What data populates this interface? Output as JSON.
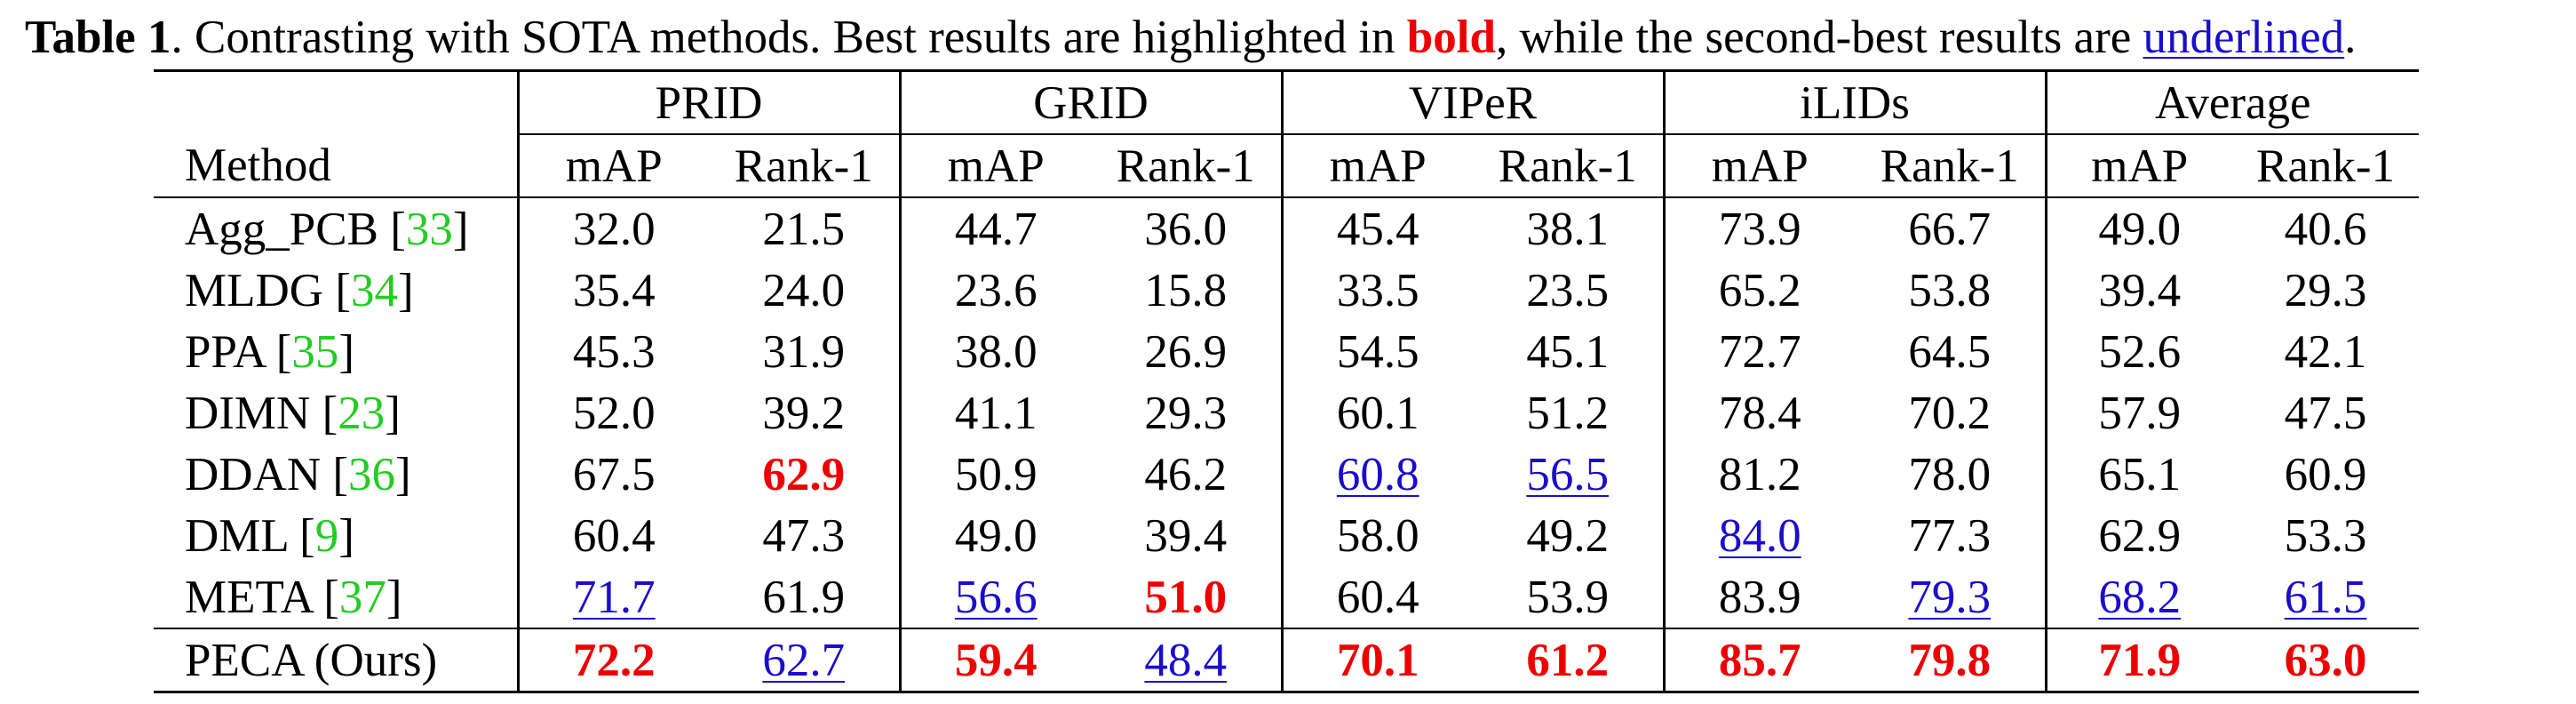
{
  "caption": {
    "label": "Table 1",
    "text_before_bold": ". Contrasting with SOTA methods. Best results are highlighted in ",
    "bold_word": "bold",
    "text_between": ", while the second-best results are ",
    "underlined_word": "underlined",
    "text_end": "."
  },
  "header": {
    "method": "Method",
    "datasets": [
      "PRID",
      "GRID",
      "VIPeR",
      "iLIDs",
      "Average"
    ],
    "metrics": [
      "mAP",
      "Rank-1"
    ]
  },
  "rows": [
    {
      "name": "Agg_PCB",
      "cite": "33",
      "values": [
        "32.0",
        "21.5",
        "44.7",
        "36.0",
        "45.4",
        "38.1",
        "73.9",
        "66.7",
        "49.0",
        "40.6"
      ],
      "styles": [
        "",
        "",
        "",
        "",
        "",
        "",
        "",
        "",
        "",
        ""
      ]
    },
    {
      "name": "MLDG",
      "cite": "34",
      "values": [
        "35.4",
        "24.0",
        "23.6",
        "15.8",
        "33.5",
        "23.5",
        "65.2",
        "53.8",
        "39.4",
        "29.3"
      ],
      "styles": [
        "",
        "",
        "",
        "",
        "",
        "",
        "",
        "",
        "",
        ""
      ]
    },
    {
      "name": "PPA",
      "cite": "35",
      "values": [
        "45.3",
        "31.9",
        "38.0",
        "26.9",
        "54.5",
        "45.1",
        "72.7",
        "64.5",
        "52.6",
        "42.1"
      ],
      "styles": [
        "",
        "",
        "",
        "",
        "",
        "",
        "",
        "",
        "",
        ""
      ]
    },
    {
      "name": "DIMN",
      "cite": "23",
      "values": [
        "52.0",
        "39.2",
        "41.1",
        "29.3",
        "60.1",
        "51.2",
        "78.4",
        "70.2",
        "57.9",
        "47.5"
      ],
      "styles": [
        "",
        "",
        "",
        "",
        "",
        "",
        "",
        "",
        "",
        ""
      ]
    },
    {
      "name": "DDAN",
      "cite": "36",
      "values": [
        "67.5",
        "62.9",
        "50.9",
        "46.2",
        "60.8",
        "56.5",
        "81.2",
        "78.0",
        "65.1",
        "60.9"
      ],
      "styles": [
        "",
        "best",
        "",
        "",
        "second",
        "second",
        "",
        "",
        "",
        ""
      ]
    },
    {
      "name": "DML",
      "cite": "9",
      "values": [
        "60.4",
        "47.3",
        "49.0",
        "39.4",
        "58.0",
        "49.2",
        "84.0",
        "77.3",
        "62.9",
        "53.3"
      ],
      "styles": [
        "",
        "",
        "",
        "",
        "",
        "",
        "second",
        "",
        "",
        ""
      ]
    },
    {
      "name": "META",
      "cite": "37",
      "values": [
        "71.7",
        "61.9",
        "56.6",
        "51.0",
        "60.4",
        "53.9",
        "83.9",
        "79.3",
        "68.2",
        "61.5"
      ],
      "styles": [
        "second",
        "",
        "second",
        "best",
        "",
        "",
        "",
        "second",
        "second",
        "second"
      ]
    },
    {
      "name": "PECA (Ours)",
      "cite": "",
      "values": [
        "72.2",
        "62.7",
        "59.4",
        "48.4",
        "70.1",
        "61.2",
        "85.7",
        "79.8",
        "71.9",
        "63.0"
      ],
      "styles": [
        "best",
        "second",
        "best",
        "second",
        "best",
        "best",
        "best",
        "best",
        "best",
        "best"
      ]
    }
  ]
}
